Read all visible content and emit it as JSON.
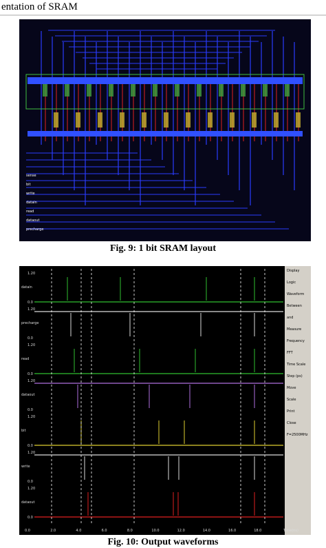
{
  "header": {
    "title": "entation of SRAM"
  },
  "figures": [
    {
      "caption": "Fig. 9: 1 bit SRAM layout",
      "labels": [
        "sense",
        "bit",
        "write",
        "datain",
        "read",
        "dataout",
        "precharge"
      ]
    },
    {
      "caption": "Fig. 10: Output waveforms",
      "signals": [
        "datain",
        "precharge",
        "read",
        "dataout",
        "bit",
        "write",
        "dataout"
      ],
      "levels": [
        "1.20",
        "0.0"
      ],
      "time_ticks": [
        "0.0",
        "2.0",
        "4.0",
        "6.0",
        "8.0",
        "10.0",
        "12.0",
        "14.0",
        "16.0",
        "18.0"
      ],
      "time_unit": "Time(ns)",
      "panel": [
        "Display",
        "Logic",
        "Waveform",
        "Between",
        "and",
        "Measure",
        "Frequency",
        "FFT",
        "Time Scale",
        "Step (ps)",
        "Move",
        "Scale",
        "Print",
        "Close",
        "F=2500MHz"
      ]
    }
  ]
}
